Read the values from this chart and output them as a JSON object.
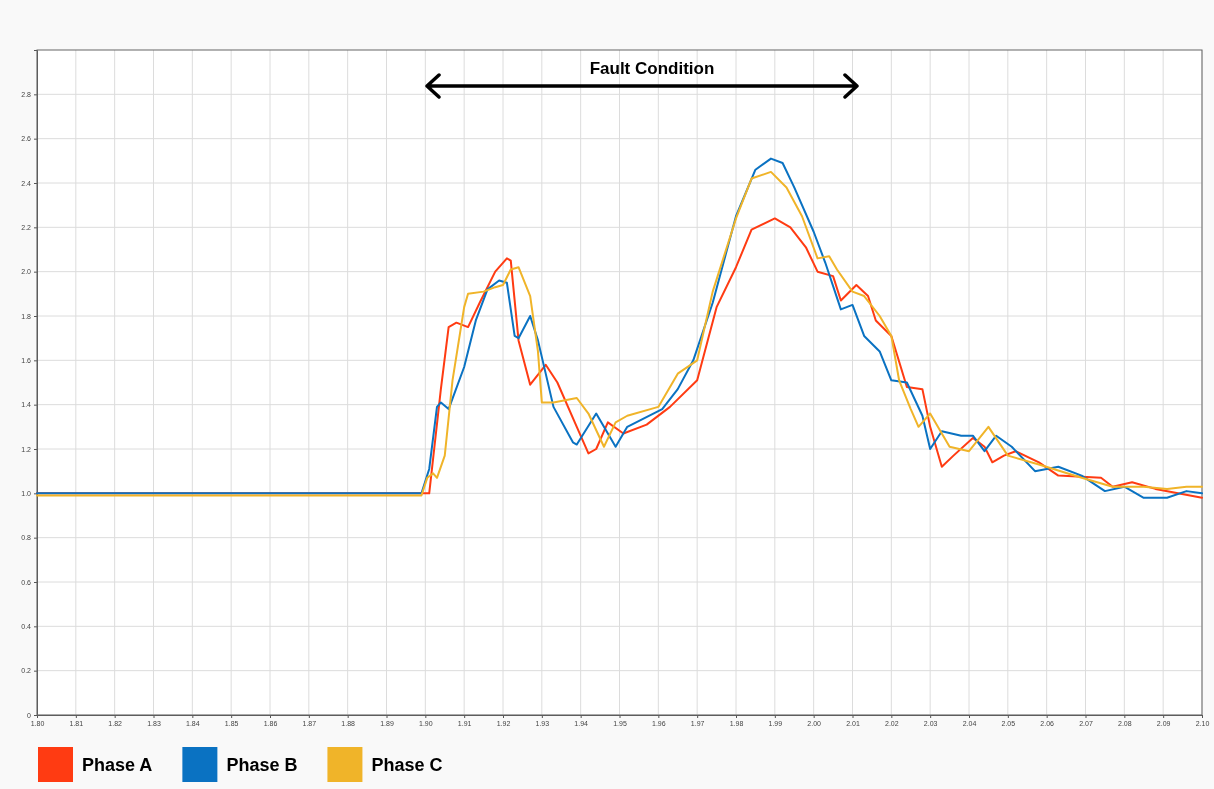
{
  "chart_data": {
    "type": "line",
    "xlim": [
      1.8,
      2.1
    ],
    "ylim": [
      0,
      3.0
    ],
    "xticks": [
      {
        "value": 1.8,
        "label": "1.80"
      },
      {
        "value": 1.81,
        "label": "1.81"
      },
      {
        "value": 1.82,
        "label": "1.82"
      },
      {
        "value": 1.83,
        "label": "1.83"
      },
      {
        "value": 1.84,
        "label": "1.84"
      },
      {
        "value": 1.85,
        "label": "1.85"
      },
      {
        "value": 1.86,
        "label": "1.86"
      },
      {
        "value": 1.87,
        "label": "1.87"
      },
      {
        "value": 1.88,
        "label": "1.88"
      },
      {
        "value": 1.89,
        "label": "1.89"
      },
      {
        "value": 1.9,
        "label": "1.90"
      },
      {
        "value": 1.91,
        "label": "1.91"
      },
      {
        "value": 1.92,
        "label": "1.92"
      },
      {
        "value": 1.93,
        "label": "1.93"
      },
      {
        "value": 1.94,
        "label": "1.94"
      },
      {
        "value": 1.95,
        "label": "1.95"
      },
      {
        "value": 1.96,
        "label": "1.96"
      },
      {
        "value": 1.97,
        "label": "1.97"
      },
      {
        "value": 1.98,
        "label": "1.98"
      },
      {
        "value": 1.99,
        "label": "1.99"
      },
      {
        "value": 2.0,
        "label": "2.00"
      },
      {
        "value": 2.01,
        "label": "2.01"
      },
      {
        "value": 2.02,
        "label": "2.02"
      },
      {
        "value": 2.03,
        "label": "2.03"
      },
      {
        "value": 2.04,
        "label": "2.04"
      },
      {
        "value": 2.05,
        "label": "2.05"
      },
      {
        "value": 2.06,
        "label": "2.06"
      },
      {
        "value": 2.07,
        "label": "2.07"
      },
      {
        "value": 2.08,
        "label": "2.08"
      },
      {
        "value": 2.09,
        "label": "2.09"
      },
      {
        "value": 2.1,
        "label": "2.10"
      }
    ],
    "yticks": [
      0,
      0.2,
      0.4,
      0.6,
      0.8,
      {
        "value": 1,
        "label": "1.0"
      },
      1.2,
      1.4,
      1.6,
      1.8,
      {
        "value": 2,
        "label": "2.0"
      },
      2.2,
      2.4,
      2.6,
      2.8
    ],
    "grid": true,
    "legend": "bottom",
    "marker": "none",
    "line_style": "solid",
    "annotations": [
      "Fault Condition"
    ],
    "series": [
      {
        "name": "Phase A",
        "color": "#ff3b12",
        "x": [
          1.8,
          1.899,
          1.901,
          1.904,
          1.906,
          1.908,
          1.911,
          1.914,
          1.918,
          1.921,
          1.922,
          1.924,
          1.927,
          1.931,
          1.934,
          1.939,
          1.942,
          1.944,
          1.947,
          1.951,
          1.957,
          1.963,
          1.97,
          1.975,
          1.98,
          1.984,
          1.99,
          1.994,
          1.998,
          2.001,
          2.005,
          2.007,
          2.011,
          2.014,
          2.016,
          2.02,
          2.024,
          2.028,
          2.03,
          2.033,
          2.036,
          2.041,
          2.044,
          2.046,
          2.049,
          2.052,
          2.058,
          2.063,
          2.074,
          2.077,
          2.082,
          2.088,
          2.1
        ],
        "values": [
          1.0,
          1.0,
          1.0,
          1.47,
          1.75,
          1.77,
          1.75,
          1.86,
          2.0,
          2.06,
          2.05,
          1.69,
          1.49,
          1.58,
          1.5,
          1.3,
          1.18,
          1.2,
          1.32,
          1.27,
          1.31,
          1.39,
          1.51,
          1.84,
          2.02,
          2.19,
          2.24,
          2.2,
          2.11,
          2.0,
          1.98,
          1.87,
          1.94,
          1.89,
          1.78,
          1.71,
          1.48,
          1.47,
          1.3,
          1.12,
          1.17,
          1.25,
          1.21,
          1.14,
          1.17,
          1.19,
          1.14,
          1.08,
          1.07,
          1.03,
          1.05,
          1.02,
          0.98
        ]
      },
      {
        "name": "Phase B",
        "color": "#0a72c2",
        "x": [
          1.8,
          1.899,
          1.901,
          1.903,
          1.904,
          1.906,
          1.91,
          1.913,
          1.916,
          1.919,
          1.921,
          1.923,
          1.924,
          1.927,
          1.929,
          1.933,
          1.938,
          1.939,
          1.944,
          1.949,
          1.952,
          1.961,
          1.965,
          1.969,
          1.974,
          1.98,
          1.985,
          1.989,
          1.992,
          1.995,
          2.0,
          2.003,
          2.007,
          2.01,
          2.013,
          2.017,
          2.02,
          2.024,
          2.028,
          2.03,
          2.033,
          2.038,
          2.041,
          2.044,
          2.047,
          2.051,
          2.057,
          2.063,
          2.069,
          2.075,
          2.08,
          2.085,
          2.091,
          2.096,
          2.1
        ],
        "values": [
          1.0,
          1.0,
          1.11,
          1.39,
          1.41,
          1.38,
          1.57,
          1.78,
          1.92,
          1.96,
          1.95,
          1.71,
          1.7,
          1.8,
          1.69,
          1.39,
          1.23,
          1.22,
          1.36,
          1.21,
          1.3,
          1.38,
          1.47,
          1.6,
          1.86,
          2.25,
          2.46,
          2.51,
          2.49,
          2.38,
          2.18,
          2.04,
          1.83,
          1.85,
          1.71,
          1.64,
          1.51,
          1.5,
          1.35,
          1.2,
          1.28,
          1.26,
          1.26,
          1.19,
          1.26,
          1.21,
          1.1,
          1.12,
          1.08,
          1.01,
          1.03,
          0.98,
          0.98,
          1.01,
          1.0
        ]
      },
      {
        "name": "Phase C",
        "color": "#f0b429",
        "x": [
          1.8,
          1.899,
          1.9005,
          1.902,
          1.903,
          1.905,
          1.907,
          1.91,
          1.911,
          1.915,
          1.918,
          1.92,
          1.922,
          1.924,
          1.927,
          1.929,
          1.93,
          1.933,
          1.939,
          1.942,
          1.946,
          1.949,
          1.952,
          1.96,
          1.965,
          1.97,
          1.974,
          1.98,
          1.984,
          1.989,
          1.993,
          1.997,
          2.001,
          2.004,
          2.006,
          2.01,
          2.013,
          2.017,
          2.02,
          2.022,
          2.025,
          2.027,
          2.03,
          2.033,
          2.035,
          2.04,
          2.045,
          2.05,
          2.058,
          2.069,
          2.077,
          2.085,
          2.091,
          2.096,
          2.1
        ],
        "values": [
          0.99,
          0.99,
          1.07,
          1.09,
          1.07,
          1.17,
          1.51,
          1.84,
          1.9,
          1.91,
          1.93,
          1.94,
          2.01,
          2.02,
          1.89,
          1.64,
          1.41,
          1.41,
          1.43,
          1.36,
          1.21,
          1.32,
          1.35,
          1.39,
          1.54,
          1.6,
          1.91,
          2.24,
          2.42,
          2.45,
          2.38,
          2.25,
          2.06,
          2.07,
          2.01,
          1.91,
          1.89,
          1.8,
          1.71,
          1.51,
          1.38,
          1.3,
          1.36,
          1.27,
          1.21,
          1.19,
          1.3,
          1.17,
          1.13,
          1.07,
          1.03,
          1.03,
          1.02,
          1.03,
          1.03
        ]
      }
    ]
  }
}
